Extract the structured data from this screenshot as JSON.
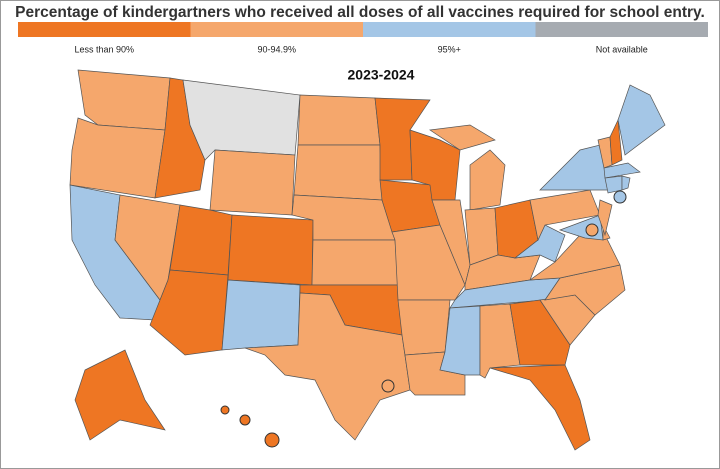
{
  "title": "Percentage of kindergartners who received all doses of all vaccines required for school entry.",
  "legend": [
    {
      "label": "Less than 90%",
      "color": "#ee7623",
      "fill": "#ee7623"
    },
    {
      "label": "90-94.9%",
      "color": "#f5a76c",
      "fill": "#f5a76c"
    },
    {
      "label": "95%+",
      "color": "#a4c6e6",
      "fill": "#a4c6e6"
    },
    {
      "label": "Not available",
      "color": "#a6abb1",
      "fill": "#e1e1e1"
    }
  ],
  "map": {
    "subtitle": "2023-2024",
    "regions": [
      1,
      1,
      2,
      1,
      0,
      3,
      1,
      0,
      0,
      0,
      2,
      1,
      1,
      1,
      1,
      0,
      1,
      0,
      0,
      1,
      1,
      1,
      0,
      1,
      1,
      1,
      1,
      0,
      1,
      2,
      2,
      1,
      0,
      0,
      1,
      1,
      1,
      2,
      1,
      2,
      2,
      1,
      1,
      1,
      0,
      2,
      2,
      2,
      2,
      0,
      0,
      0,
      0,
      2,
      1,
      1
    ]
  }
}
